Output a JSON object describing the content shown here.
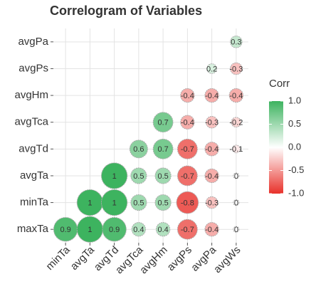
{
  "chart_data": {
    "type": "correlogram",
    "title": "Correlogram of Variables",
    "x": [
      "minTa",
      "avgTa",
      "avgTd",
      "avgTca",
      "avgHm",
      "avgPs",
      "avgPa",
      "avgWs"
    ],
    "y": [
      "avgPa",
      "avgPs",
      "avgHm",
      "avgTca",
      "avgTd",
      "avgTa",
      "minTa",
      "maxTa"
    ],
    "values": [
      [
        null,
        null,
        null,
        null,
        null,
        null,
        null,
        0.3
      ],
      [
        null,
        null,
        null,
        null,
        null,
        null,
        0.2,
        -0.3
      ],
      [
        null,
        null,
        null,
        null,
        null,
        -0.4,
        -0.4,
        -0.4
      ],
      [
        null,
        null,
        null,
        null,
        0.7,
        -0.4,
        -0.3,
        -0.2
      ],
      [
        null,
        null,
        null,
        0.6,
        0.7,
        -0.7,
        -0.4,
        -0.1
      ],
      [
        null,
        null,
        1,
        0.5,
        0.5,
        -0.7,
        -0.4,
        0
      ],
      [
        null,
        1,
        1,
        0.5,
        0.5,
        -0.8,
        -0.3,
        0
      ],
      [
        0.9,
        1,
        0.9,
        0.4,
        0.4,
        -0.7,
        -0.4,
        0
      ]
    ],
    "legend_title": "Corr",
    "clim": [
      -1,
      1
    ],
    "cticks": [
      {
        "value": 1,
        "label": "1.0"
      },
      0.5,
      {
        "value": 0,
        "label": "0.0"
      },
      -0.5,
      {
        "value": -1,
        "label": "-1.0"
      }
    ],
    "colors": {
      "low": "#e8312a",
      "mid": "#ffffff",
      "high": "#3db35f"
    },
    "grid": true
  }
}
